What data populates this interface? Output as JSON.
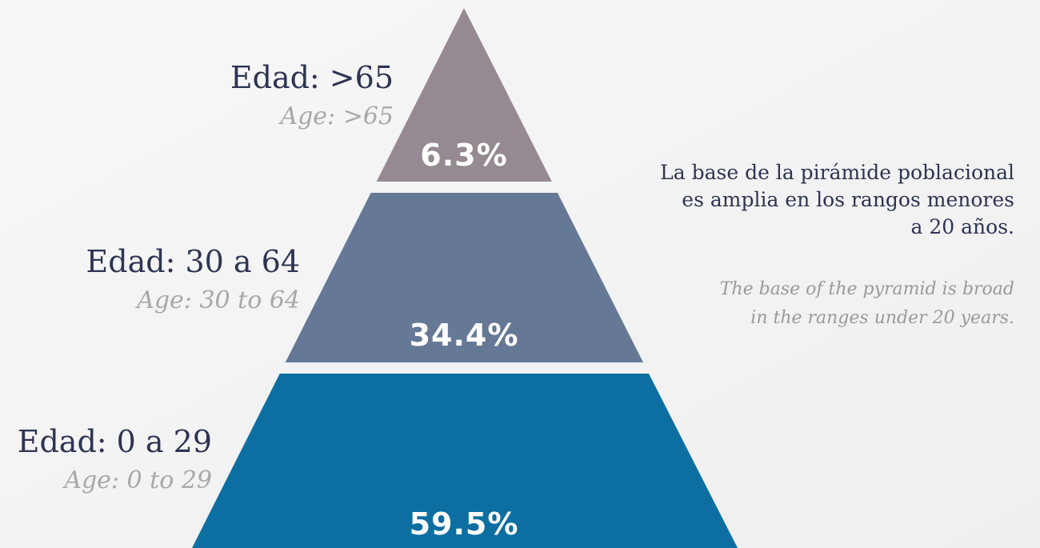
{
  "levels": [
    {
      "label": "Edad: >65",
      "sublabel": "Age: >65",
      "value": "6.3%"
    },
    {
      "label": "Edad: 30 a 64",
      "sublabel": "Age: 30 to 64",
      "value": "34.4%"
    },
    {
      "label": "Edad: 0 a 29",
      "sublabel": "Age: 0 to 29",
      "value": "59.5%"
    }
  ],
  "note": {
    "lines": [
      "La base de la pirámide poblacional",
      "es amplia en los rangos menores",
      "a 20 años."
    ]
  },
  "note_en": {
    "lines": [
      "The base of the pyramid is broad",
      "in the ranges under 20 years."
    ]
  }
}
